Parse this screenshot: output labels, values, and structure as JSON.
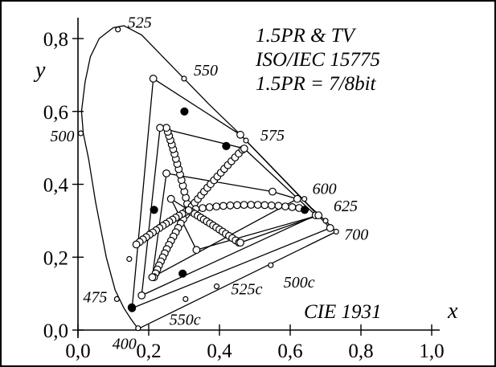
{
  "chart_data": {
    "type": "scatter",
    "title_lines": [
      "1.5PR & TV",
      "ISO/IEC 15775",
      "1.5PR = 7/8bit"
    ],
    "corner_label": "CIE 1931",
    "xlabel": "x",
    "ylabel": "y",
    "xlim": [
      0.0,
      1.0
    ],
    "ylim": [
      0.0,
      0.85
    ],
    "x_ticks": [
      {
        "value": 0.0,
        "label": "0,0"
      },
      {
        "value": 0.2,
        "label": "0,2"
      },
      {
        "value": 0.4,
        "label": "0,4"
      },
      {
        "value": 0.6,
        "label": "0,6"
      },
      {
        "value": 0.8,
        "label": "0,8"
      },
      {
        "value": 1.0,
        "label": "1,0"
      }
    ],
    "y_ticks": [
      {
        "value": 0.0,
        "label": "0,0"
      },
      {
        "value": 0.2,
        "label": "0,2"
      },
      {
        "value": 0.4,
        "label": "0,4"
      },
      {
        "value": 0.6,
        "label": "0,6"
      },
      {
        "value": 0.8,
        "label": "0,8"
      }
    ],
    "spectral_locus": [
      [
        0.174,
        0.005
      ],
      [
        0.165,
        0.01
      ],
      [
        0.15,
        0.03
      ],
      [
        0.13,
        0.06
      ],
      [
        0.105,
        0.11
      ],
      [
        0.08,
        0.2
      ],
      [
        0.05,
        0.35
      ],
      [
        0.03,
        0.47
      ],
      [
        0.015,
        0.54
      ],
      [
        0.01,
        0.6
      ],
      [
        0.02,
        0.68
      ],
      [
        0.035,
        0.75
      ],
      [
        0.06,
        0.8
      ],
      [
        0.1,
        0.83
      ],
      [
        0.13,
        0.835
      ],
      [
        0.18,
        0.81
      ],
      [
        0.23,
        0.76
      ],
      [
        0.3,
        0.69
      ],
      [
        0.37,
        0.62
      ],
      [
        0.45,
        0.545
      ],
      [
        0.53,
        0.465
      ],
      [
        0.6,
        0.395
      ],
      [
        0.66,
        0.335
      ],
      [
        0.7,
        0.3
      ],
      [
        0.73,
        0.27
      ]
    ],
    "wavelength_markers": [
      {
        "label": "400",
        "x": 0.17,
        "y": 0.005
      },
      {
        "label": "475",
        "x": 0.11,
        "y": 0.085
      },
      {
        "label": "",
        "x": 0.145,
        "y": 0.195
      },
      {
        "label": "500",
        "x": 0.008,
        "y": 0.54
      },
      {
        "label": "525",
        "x": 0.113,
        "y": 0.825
      },
      {
        "label": "550",
        "x": 0.3,
        "y": 0.69
      },
      {
        "label": "575",
        "x": 0.475,
        "y": 0.52
      },
      {
        "label": "600",
        "x": 0.64,
        "y": 0.36
      },
      {
        "label": "625",
        "x": 0.7,
        "y": 0.3
      },
      {
        "label": "700",
        "x": 0.73,
        "y": 0.27
      }
    ],
    "purple_line_labels": [
      {
        "label": "500c",
        "x": 0.545,
        "y": 0.178
      },
      {
        "label": "525c",
        "x": 0.392,
        "y": 0.12
      },
      {
        "label": "550c",
        "x": 0.304,
        "y": 0.085
      }
    ],
    "purple_markers": [
      {
        "x": 0.545,
        "y": 0.178
      },
      {
        "x": 0.392,
        "y": 0.12
      },
      {
        "x": 0.304,
        "y": 0.085
      }
    ],
    "gamut_polygons": [
      [
        [
          0.213,
          0.69
        ],
        [
          0.459,
          0.536
        ],
        [
          0.713,
          0.28
        ],
        [
          0.153,
          0.06
        ]
      ],
      [
        [
          0.232,
          0.555
        ],
        [
          0.47,
          0.498
        ],
        [
          0.672,
          0.315
        ],
        [
          0.18,
          0.095
        ]
      ],
      [
        [
          0.25,
          0.43
        ],
        [
          0.55,
          0.38
        ],
        [
          0.62,
          0.36
        ],
        [
          0.21,
          0.145
        ]
      ],
      [
        [
          0.263,
          0.36
        ],
        [
          0.459,
          0.24
        ],
        [
          0.68,
          0.315
        ],
        [
          0.335,
          0.22
        ]
      ]
    ],
    "filled_points": [
      {
        "x": 0.301,
        "y": 0.6
      },
      {
        "x": 0.419,
        "y": 0.505
      },
      {
        "x": 0.641,
        "y": 0.33
      },
      {
        "x": 0.215,
        "y": 0.33
      },
      {
        "x": 0.296,
        "y": 0.155
      },
      {
        "x": 0.152,
        "y": 0.062
      }
    ],
    "center_point": {
      "x": 0.313,
      "y": 0.329
    },
    "hue_spokes": [
      {
        "end": [
          0.25,
          0.555
        ],
        "via": [
          0.28,
          0.47
        ]
      },
      {
        "end": [
          0.465,
          0.495
        ],
        "via": [
          0.38,
          0.41
        ]
      },
      {
        "end": [
          0.625,
          0.335
        ],
        "via": [
          0.47,
          0.355
        ]
      },
      {
        "end": [
          0.455,
          0.24
        ],
        "via": [
          0.38,
          0.29
        ]
      },
      {
        "end": [
          0.215,
          0.145
        ],
        "via": [
          0.25,
          0.23
        ]
      },
      {
        "end": [
          0.165,
          0.235
        ],
        "via": [
          0.24,
          0.29
        ]
      }
    ],
    "grid": false
  }
}
